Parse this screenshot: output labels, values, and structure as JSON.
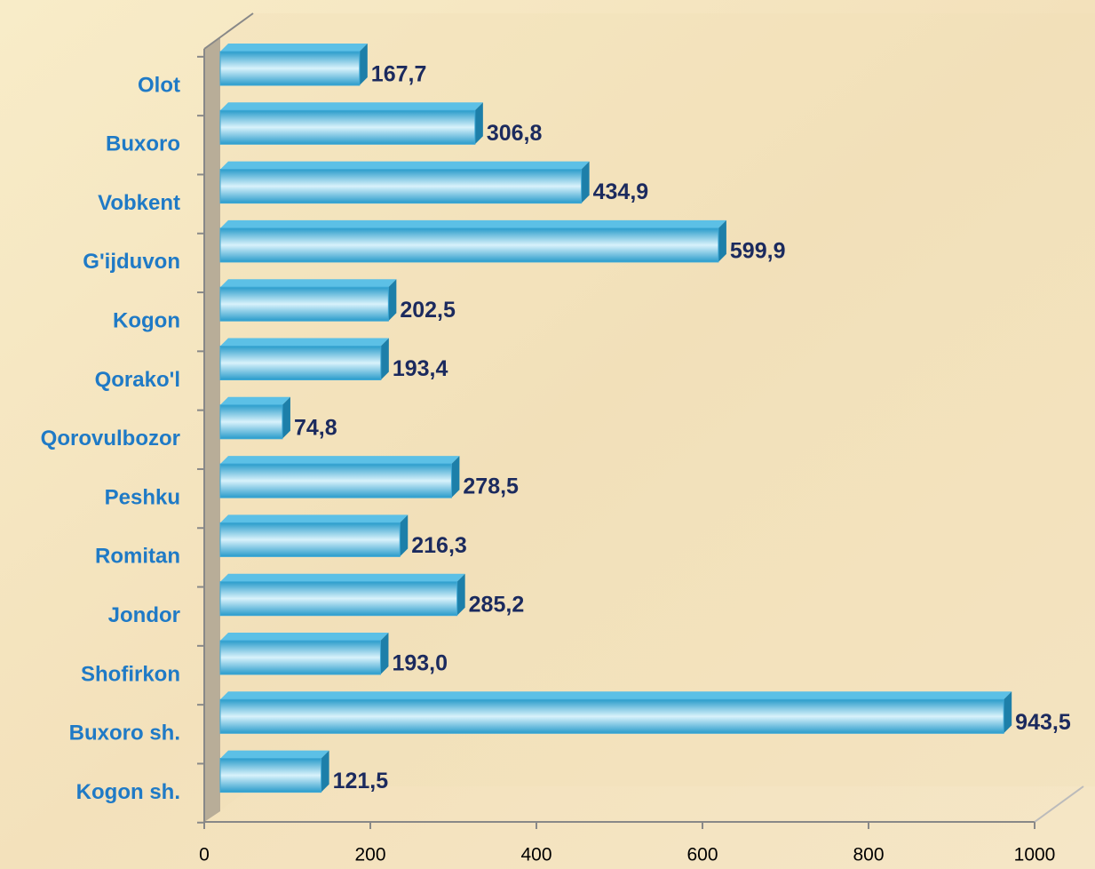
{
  "chart_data": {
    "type": "bar",
    "orientation": "horizontal",
    "categories": [
      "Olot",
      "Buxoro",
      "Vobkent",
      "G'ijduvon",
      "Kogon",
      "Qorako'l",
      "Qorovulbozor",
      "Peshku",
      "Romitan",
      "Jondor",
      "Shofirkon",
      "Buxoro sh.",
      "Kogon sh."
    ],
    "values": [
      167.7,
      306.8,
      434.9,
      599.9,
      202.5,
      193.4,
      74.8,
      278.5,
      216.3,
      285.2,
      193.0,
      943.5,
      121.5
    ],
    "value_labels": [
      "167,7",
      "306,8",
      "434,9",
      "599,9",
      "202,5",
      "193,4",
      "74,8",
      "278,5",
      "216,3",
      "285,2",
      "193,0",
      "943,5",
      "121,5"
    ],
    "color": "#3fa9d6",
    "xlim": [
      0,
      1000
    ],
    "xticks": [
      0,
      200,
      400,
      600,
      800,
      1000
    ]
  }
}
